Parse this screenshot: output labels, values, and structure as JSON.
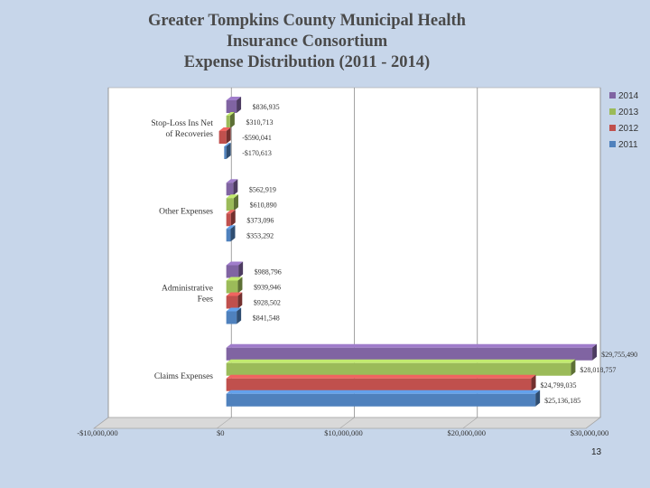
{
  "title_lines": [
    "Greater Tompkins County Municipal Health",
    "Insurance Consortium",
    "Expense Distribution (2011 - 2014)"
  ],
  "slide_number": "13",
  "chart_data": {
    "type": "bar",
    "orientation": "horizontal",
    "title": "Greater Tompkins County Municipal Health Insurance Consortium Expense Distribution (2011 - 2014)",
    "categories": [
      "Stop-Loss Ins Net of Recoveries",
      "Other Expenses",
      "Administrative Fees",
      "Claims Expenses"
    ],
    "category_label_lines": [
      [
        "Stop-Loss Ins Net",
        "of Recoveries"
      ],
      [
        "Other Expenses"
      ],
      [
        "Administrative",
        "Fees"
      ],
      [
        "Claims Expenses"
      ]
    ],
    "series": [
      {
        "name": "2014",
        "color": "#8064a2",
        "values": [
          836935,
          562919,
          988796,
          29755490
        ],
        "labels": [
          "$836,935",
          "$562,919",
          "$988,796",
          "$29,755,490"
        ]
      },
      {
        "name": "2013",
        "color": "#9bbb59",
        "values": [
          310713,
          610890,
          939946,
          28018757
        ],
        "labels": [
          "$310,713",
          "$610,890",
          "$939,946",
          "$28,018,757"
        ]
      },
      {
        "name": "2012",
        "color": "#c0504d",
        "values": [
          -590041,
          373096,
          928502,
          24799035
        ],
        "labels": [
          "-$590,041",
          "$373,096",
          "$928,502",
          "$24,799,035"
        ]
      },
      {
        "name": "2011",
        "color": "#4f81bd",
        "values": [
          -170613,
          353292,
          841548,
          25136185
        ],
        "labels": [
          "-$170,613",
          "$353,292",
          "$841,548",
          "$25,136,185"
        ]
      }
    ],
    "xlim": [
      -10000000,
      30000000
    ],
    "xticks": [
      -10000000,
      0,
      10000000,
      20000000,
      30000000
    ],
    "xtick_labels": [
      "-$10,000,000",
      "$0",
      "$10,000,000",
      "$20,000,000",
      "$30,000,000"
    ],
    "grid": true,
    "legend_position": "top-right",
    "style": "3d"
  }
}
